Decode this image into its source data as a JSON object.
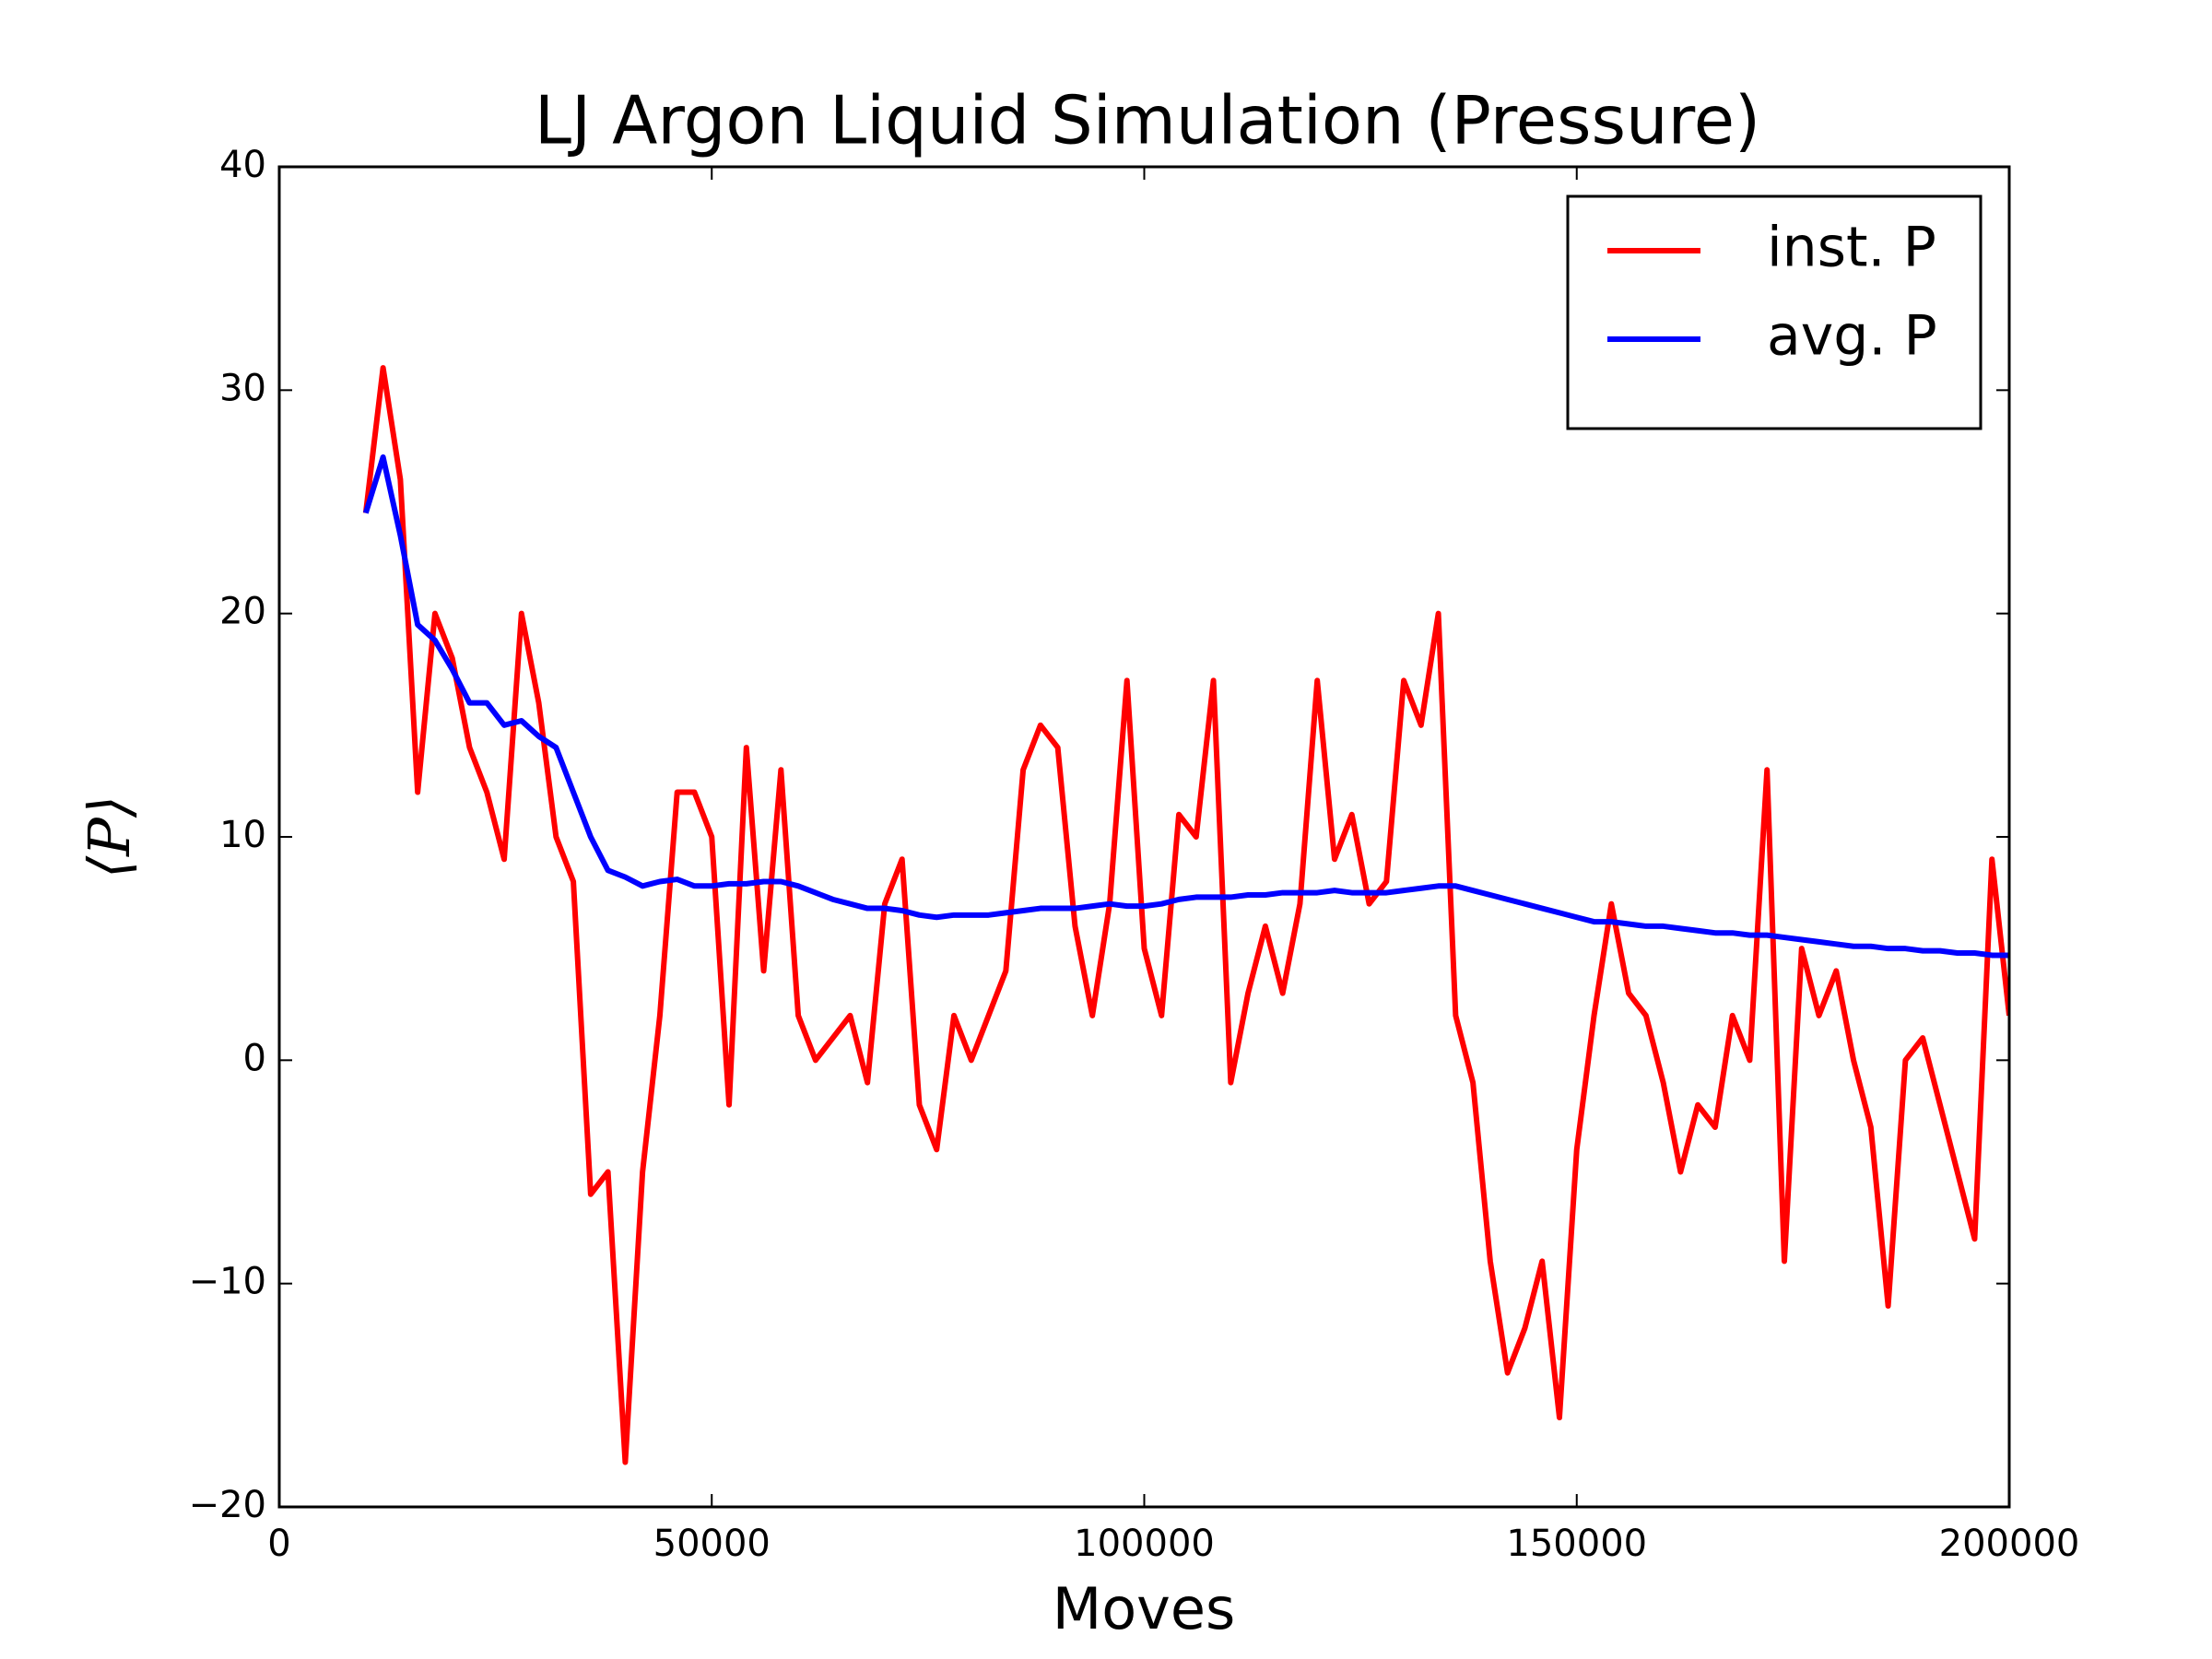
{
  "chart_data": {
    "type": "line",
    "title": "LJ Argon Liquid Simulation (Pressure)",
    "x_label": "Moves",
    "y_label": "⟨P⟩",
    "xlim": [
      0,
      200000
    ],
    "xticks": [
      0,
      50000,
      100000,
      150000,
      200000
    ],
    "ylim": [
      -20,
      40
    ],
    "yticks": [
      {
        "value": -20,
        "label": "−20"
      },
      {
        "value": -10,
        "label": "−10"
      },
      0,
      10,
      20,
      30,
      40
    ],
    "legend": "upper right",
    "x": [
      10000,
      12000,
      14000,
      16000,
      18000,
      20000,
      22000,
      24000,
      26000,
      28000,
      30000,
      32000,
      34000,
      36000,
      38000,
      40000,
      42000,
      44000,
      46000,
      48000,
      50000,
      52000,
      54000,
      56000,
      58000,
      60000,
      62000,
      64000,
      66000,
      68000,
      70000,
      72000,
      74000,
      76000,
      78000,
      80000,
      82000,
      84000,
      86000,
      88000,
      90000,
      92000,
      94000,
      96000,
      98000,
      100000,
      102000,
      104000,
      106000,
      108000,
      110000,
      112000,
      114000,
      116000,
      118000,
      120000,
      122000,
      124000,
      126000,
      128000,
      130000,
      132000,
      134000,
      136000,
      138000,
      140000,
      142000,
      144000,
      146000,
      148000,
      150000,
      152000,
      154000,
      156000,
      158000,
      160000,
      162000,
      164000,
      166000,
      168000,
      170000,
      172000,
      174000,
      176000,
      178000,
      180000,
      182000,
      184000,
      186000,
      188000,
      190000,
      192000,
      194000,
      196000,
      198000,
      200000
    ],
    "series": [
      {
        "name": "inst. P",
        "color": "#ff0000",
        "values": [
          24.5,
          31,
          26,
          12,
          20,
          18,
          14,
          12,
          9,
          20,
          16,
          10,
          8,
          -6,
          -5,
          -18,
          -5,
          2,
          12,
          12,
          10,
          -2,
          14,
          4,
          13,
          2,
          0,
          1,
          2,
          -1,
          7,
          9,
          -2,
          -4,
          2,
          0,
          2,
          4,
          13,
          15,
          14,
          6,
          2,
          7,
          17,
          5,
          2,
          11,
          10,
          17,
          -1,
          3,
          6,
          3,
          7,
          17,
          9,
          11,
          7,
          8,
          17,
          15,
          20,
          2,
          -1,
          -9,
          -14,
          -12,
          -9,
          -16,
          -4,
          2,
          7,
          3,
          2,
          -1,
          -5,
          -2,
          -3,
          2,
          0,
          13,
          -9,
          5,
          2,
          4,
          0,
          -3,
          -11,
          0,
          1,
          -2,
          -5,
          -8,
          9,
          2
        ]
      },
      {
        "name": "avg. P",
        "color": "#0000ff",
        "values": [
          24.5,
          27,
          23.5,
          19.5,
          18.8,
          17.5,
          16,
          16,
          15,
          15.2,
          14.5,
          14,
          12,
          10,
          8.5,
          8.2,
          7.8,
          8,
          8.1,
          7.8,
          7.8,
          7.9,
          7.9,
          8,
          8,
          7.8,
          7.5,
          7.2,
          7,
          6.8,
          6.8,
          6.7,
          6.5,
          6.4,
          6.5,
          6.5,
          6.5,
          6.6,
          6.7,
          6.8,
          6.8,
          6.8,
          6.9,
          7,
          6.9,
          6.9,
          7,
          7.2,
          7.3,
          7.3,
          7.3,
          7.4,
          7.4,
          7.5,
          7.5,
          7.5,
          7.6,
          7.5,
          7.5,
          7.5,
          7.6,
          7.7,
          7.8,
          7.8,
          7.6,
          7.4,
          7.2,
          7,
          6.8,
          6.6,
          6.4,
          6.2,
          6.2,
          6.1,
          6,
          6,
          5.9,
          5.8,
          5.7,
          5.7,
          5.6,
          5.6,
          5.5,
          5.4,
          5.3,
          5.2,
          5.1,
          5.1,
          5,
          5,
          4.9,
          4.9,
          4.8,
          4.8,
          4.7,
          4.7
        ]
      }
    ]
  }
}
